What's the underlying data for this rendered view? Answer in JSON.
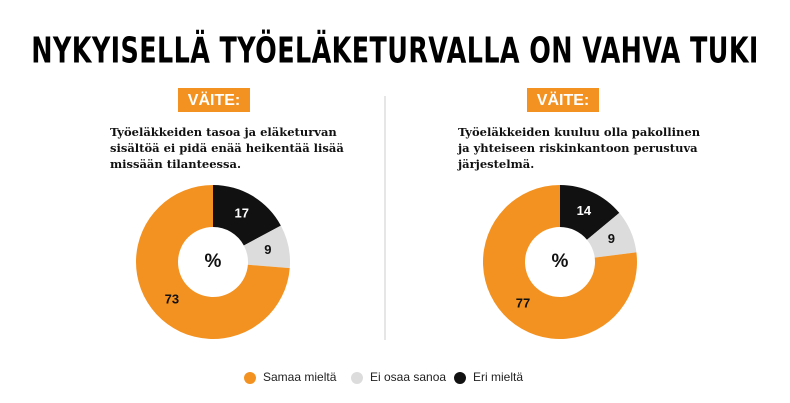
{
  "title": "NYKYISELLÄ TYÖELÄKETURVALLA ON VAHVA TUKI",
  "legend": [
    {
      "name": "Samaa mieltä",
      "color": "#f39220"
    },
    {
      "name": "Ei osaa sanoa",
      "color": "#dcdcdc"
    },
    {
      "name": "Eri mieltä",
      "color": "#111111"
    }
  ],
  "chart_data": [
    {
      "type": "donut",
      "badge": "VÄITE:",
      "statement": [
        "Työeläkkeiden tasoa ja eläketurvan",
        "sisältöä ei pidä enää heikentää lisää",
        "missään tilanteessa."
      ],
      "center_label": "%",
      "values": [
        73,
        9,
        17
      ]
    },
    {
      "type": "donut",
      "badge": "VÄITE:",
      "statement": [
        "Työeläkkeiden kuuluu olla pakollinen",
        "ja yhteiseen riskinkantoon perustuva",
        "järjestelmä."
      ],
      "center_label": "%",
      "values": [
        77,
        9,
        14
      ]
    }
  ]
}
